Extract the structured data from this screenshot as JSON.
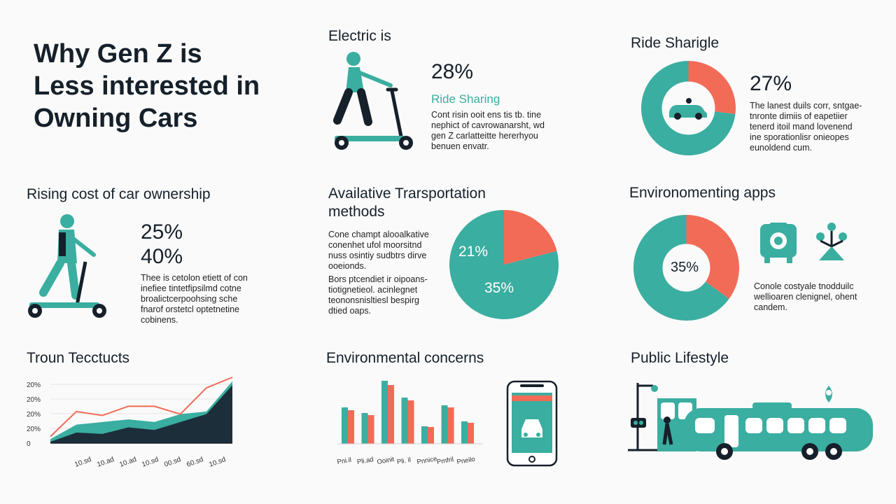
{
  "title": {
    "line1": "Why Gen Z is",
    "line2": "Less interested in",
    "line3": "Owning Cars"
  },
  "electric": {
    "heading": "Electric is",
    "percent": "28%",
    "subheading": "Ride Sharing",
    "body": [
      "Cont risin ooit ens tis tb. tine",
      "nephict of cavrowanarsht, wd",
      "gen Z carlatteitte hererhyou",
      "benuen envatr."
    ]
  },
  "ride": {
    "heading": "Ride Sharigle",
    "percent": "27%",
    "body": [
      "The lanest duils corr, sntgae-",
      "tnronte dimiis of eapetiier",
      "tenerd itoil mand lovenend",
      "ine sporationlisr onieopes",
      "eunoldend cum."
    ],
    "chart_data": {
      "type": "pie",
      "values": [
        27,
        73
      ],
      "colors": [
        "#f26b57",
        "#3aaea0"
      ]
    }
  },
  "cost": {
    "heading": "Rising cost of car ownership",
    "percent1": "25%",
    "percent2": "40%",
    "body": [
      "Thee is cetolon etiett of con",
      "inefiee tintetfipsilmd cotne",
      "broalictcerpoohsing sche",
      "fnarof orstetcl optetnetine",
      "cobinens."
    ]
  },
  "alt": {
    "heading1": "Availative Trarsportation",
    "heading2": "methods",
    "body1": [
      "Cone champt alooalkative",
      "conenhet ufol moorsitnd",
      "nuss osintiy sudbtrs dirve",
      "ooeionds."
    ],
    "body2": [
      "Bors ptcendiet ir oipoans-",
      "tiotignetieol. acinlegnet",
      "teononsnisltiesl bespirg",
      "dtied oaps."
    ],
    "label_a": "21%",
    "label_b": "35%",
    "chart_data": {
      "type": "pie",
      "values": [
        21,
        79
      ],
      "colors": [
        "#f26b57",
        "#3aaea0"
      ]
    }
  },
  "apps": {
    "heading": "Environomenting apps",
    "percent": "35%",
    "body": [
      "Conole costyale tnodduilc",
      "wellioaren clenignel, ohent",
      "candem."
    ],
    "chart_data": {
      "type": "pie",
      "values": [
        35,
        65
      ],
      "colors": [
        "#f26b57",
        "#3aaea0"
      ]
    }
  },
  "trend": {
    "heading": "Troun Tecctucts",
    "chart_data": {
      "type": "area",
      "y_tick_labels": [
        "20%",
        "20%",
        "20%",
        "20%",
        "0"
      ],
      "x_tick_labels": [
        "10.sd",
        "10.ad",
        "10.ad",
        "10.sd",
        "00.sd",
        "60.sd",
        "10.sd"
      ],
      "series": [
        {
          "values": [
            1,
            8,
            7,
            12,
            10,
            16,
            22,
            44
          ],
          "color": "#1c2e3a"
        },
        {
          "values": [
            3,
            14,
            16,
            18,
            16,
            22,
            24,
            47
          ],
          "color": "#3aaea0"
        },
        {
          "values": [
            5,
            24,
            21,
            28,
            28,
            22,
            42,
            50
          ],
          "color": "#f26b57"
        }
      ]
    }
  },
  "concerns": {
    "heading": "Environmental concerns",
    "chart_data": {
      "type": "bar",
      "categories": [
        "Pni.il",
        "Pli.ad",
        "Ooinit",
        "Pli. il",
        "Pnnice",
        "Pmfril",
        "Pneilo"
      ],
      "series": [
        {
          "values": [
            52,
            44,
            90,
            66,
            25,
            55,
            32
          ],
          "color": "#3aaea0"
        },
        {
          "values": [
            48,
            41,
            84,
            62,
            24,
            52,
            30
          ],
          "color": "#f26b57"
        }
      ]
    }
  },
  "public": {
    "heading": "Public Lifestyle"
  }
}
